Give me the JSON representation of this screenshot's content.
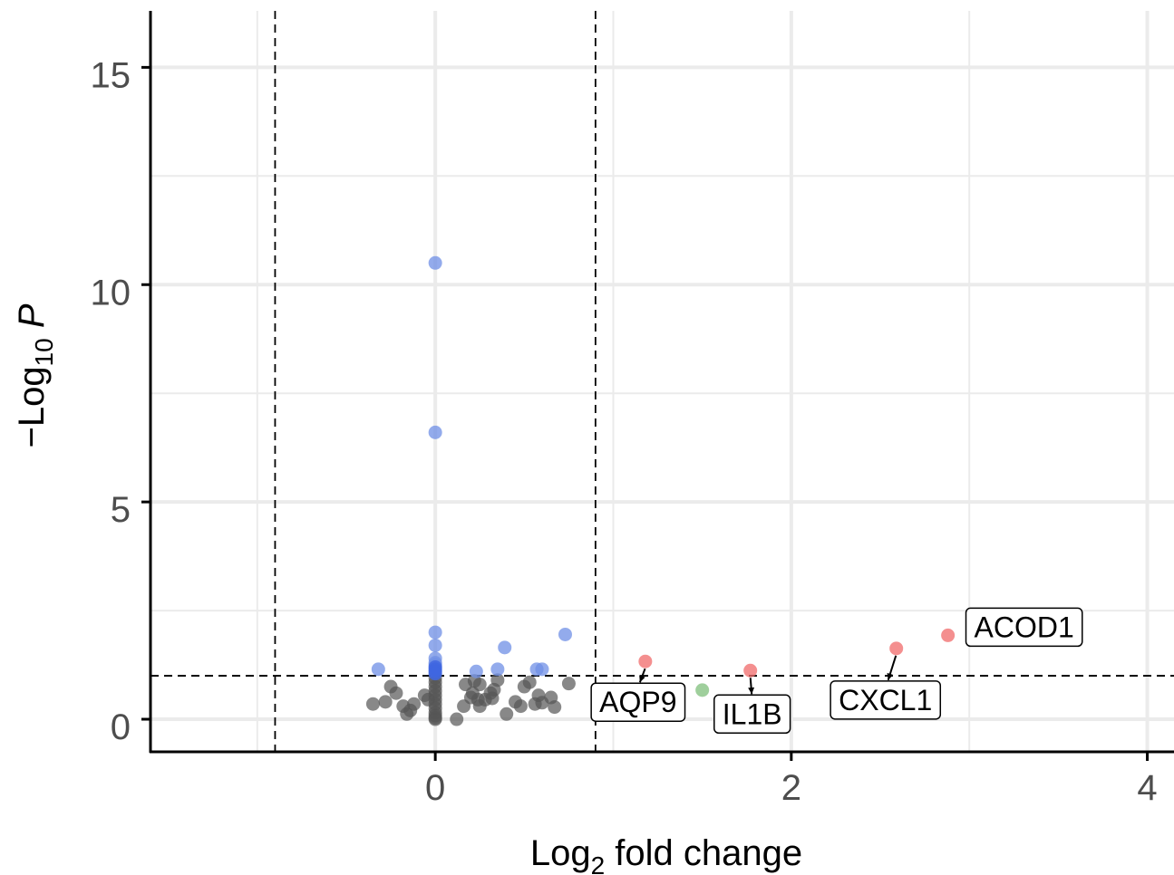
{
  "chart_data": {
    "type": "scatter",
    "xlabel": "Log2 fold change",
    "xlabel_parts": {
      "base": "Log",
      "sub": "2",
      "rest": " fold change"
    },
    "ylabel": "−Log10 P",
    "ylabel_parts": {
      "prefix": "−Log",
      "sub": "10",
      "italic": "P"
    },
    "xlim": [
      -1.6,
      4.15
    ],
    "ylim": [
      -0.75,
      16.3
    ],
    "x_ticks": [
      0,
      2,
      4
    ],
    "y_ticks": [
      0,
      5,
      10,
      15
    ],
    "x_minor_grid": [
      -1,
      1,
      3
    ],
    "y_minor_grid": [
      2.5,
      7.5,
      12.5
    ],
    "grid": true,
    "thresholds": {
      "fold_change": [
        -0.9,
        0.9
      ],
      "p_value": 1.0
    },
    "colors": {
      "ns": "#555555",
      "p": "#6f8fe6",
      "p_strong": "#3f66e0",
      "fc": "#7fbf7b",
      "p_and_fc": "#f06a6a",
      "grid": "#ebebeb",
      "axis": "#000000"
    },
    "series": [
      {
        "category": "ns",
        "points": [
          [
            -0.35,
            0.35
          ],
          [
            -0.28,
            0.4
          ],
          [
            -0.25,
            0.75
          ],
          [
            -0.22,
            0.6
          ],
          [
            -0.18,
            0.3
          ],
          [
            -0.16,
            0.12
          ],
          [
            -0.14,
            0.2
          ],
          [
            -0.12,
            0.35
          ],
          [
            -0.06,
            0.55
          ],
          [
            -0.04,
            0.45
          ],
          [
            0,
            0.95
          ],
          [
            0,
            0.85
          ],
          [
            0,
            0.75
          ],
          [
            0,
            0.65
          ],
          [
            0,
            0.55
          ],
          [
            0,
            0.45
          ],
          [
            0,
            0.35
          ],
          [
            0,
            0.25
          ],
          [
            0,
            0.15
          ],
          [
            0,
            0.08
          ],
          [
            0,
            0.03
          ],
          [
            0,
            0.0
          ],
          [
            0.12,
            0.0
          ],
          [
            0.16,
            0.3
          ],
          [
            0.17,
            0.8
          ],
          [
            0.2,
            0.5
          ],
          [
            0.21,
            0.6
          ],
          [
            0.22,
            0.88
          ],
          [
            0.24,
            0.45
          ],
          [
            0.25,
            0.3
          ],
          [
            0.25,
            0.8
          ],
          [
            0.28,
            0.45
          ],
          [
            0.31,
            0.6
          ],
          [
            0.32,
            0.48
          ],
          [
            0.33,
            0.68
          ],
          [
            0.35,
            0.9
          ],
          [
            0.4,
            0.12
          ],
          [
            0.45,
            0.4
          ],
          [
            0.48,
            0.3
          ],
          [
            0.5,
            0.75
          ],
          [
            0.53,
            0.85
          ],
          [
            0.56,
            0.35
          ],
          [
            0.58,
            0.55
          ],
          [
            0.6,
            0.38
          ],
          [
            0.65,
            0.5
          ],
          [
            0.67,
            0.28
          ],
          [
            0.75,
            0.82
          ]
        ]
      },
      {
        "category": "p",
        "points": [
          [
            0,
            10.5
          ],
          [
            0,
            6.6
          ],
          [
            0,
            2.0
          ],
          [
            0,
            1.7
          ],
          [
            0,
            1.4
          ],
          [
            0,
            1.3
          ],
          [
            0,
            1.25
          ],
          [
            -0.32,
            1.15
          ],
          [
            0.23,
            1.1
          ],
          [
            0.35,
            1.15
          ],
          [
            0.39,
            1.65
          ],
          [
            0.57,
            1.15
          ],
          [
            0.6,
            1.15
          ],
          [
            0.73,
            1.95
          ]
        ]
      },
      {
        "category": "p_strong",
        "points": [
          [
            0,
            1.2
          ],
          [
            0,
            1.15
          ],
          [
            0,
            1.1
          ],
          [
            0,
            1.05
          ]
        ]
      },
      {
        "category": "fc",
        "points": [
          [
            1.5,
            0.67
          ]
        ]
      },
      {
        "category": "p_and_fc",
        "points": [
          [
            1.18,
            1.33
          ],
          [
            1.77,
            1.12
          ],
          [
            2.59,
            1.63
          ],
          [
            2.88,
            1.93
          ]
        ]
      }
    ],
    "labels": [
      {
        "text": "ACOD1",
        "x": 2.88,
        "y": 1.93
      },
      {
        "text": "AQP9",
        "x": 1.18,
        "y": 1.33
      },
      {
        "text": "IL1B",
        "x": 1.77,
        "y": 1.12
      },
      {
        "text": "CXCL1",
        "x": 2.59,
        "y": 1.63
      }
    ]
  }
}
